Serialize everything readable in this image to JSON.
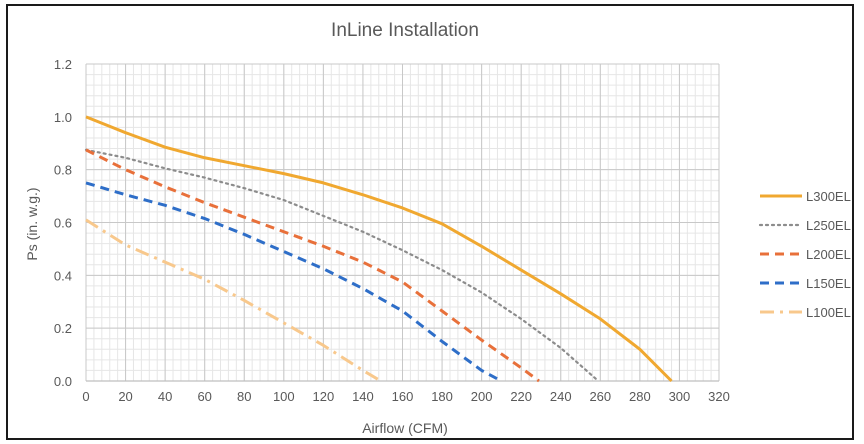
{
  "chart_data": {
    "type": "line",
    "title": "InLine Installation",
    "xlabel": "Airflow (CFM)",
    "ylabel": "Ps (in. w.g.)",
    "xlim": [
      0,
      320
    ],
    "ylim": [
      0,
      1.2
    ],
    "x_ticks": [
      0,
      20,
      40,
      60,
      80,
      100,
      120,
      140,
      160,
      180,
      200,
      220,
      240,
      260,
      280,
      300,
      320
    ],
    "y_ticks": [
      0.0,
      0.2,
      0.4,
      0.6,
      0.8,
      1.0,
      1.2
    ],
    "x_tick_labels": [
      "0",
      "20",
      "40",
      "60",
      "80",
      "100",
      "120",
      "140",
      "160",
      "180",
      "200",
      "220",
      "240",
      "260",
      "280",
      "300",
      "320"
    ],
    "y_tick_labels": [
      "0.0",
      "0.2",
      "0.4",
      "0.6",
      "0.8",
      "1.0",
      "1.2"
    ],
    "grid": true,
    "minor_grid": true,
    "legend_position": "right",
    "series": [
      {
        "name": "L300EL",
        "color": "#f0a830",
        "dash": "solid",
        "points": [
          [
            0,
            1.0
          ],
          [
            20,
            0.94
          ],
          [
            40,
            0.885
          ],
          [
            60,
            0.845
          ],
          [
            80,
            0.815
          ],
          [
            100,
            0.785
          ],
          [
            120,
            0.75
          ],
          [
            140,
            0.705
          ],
          [
            160,
            0.655
          ],
          [
            180,
            0.595
          ],
          [
            200,
            0.51
          ],
          [
            220,
            0.42
          ],
          [
            240,
            0.33
          ],
          [
            260,
            0.235
          ],
          [
            280,
            0.12
          ],
          [
            296,
            0.0
          ]
        ]
      },
      {
        "name": "L250EL",
        "color": "#8c8c8c",
        "dash": "dotted",
        "points": [
          [
            0,
            0.875
          ],
          [
            20,
            0.845
          ],
          [
            40,
            0.805
          ],
          [
            60,
            0.77
          ],
          [
            80,
            0.73
          ],
          [
            100,
            0.685
          ],
          [
            120,
            0.625
          ],
          [
            140,
            0.565
          ],
          [
            160,
            0.495
          ],
          [
            180,
            0.42
          ],
          [
            200,
            0.335
          ],
          [
            220,
            0.235
          ],
          [
            240,
            0.125
          ],
          [
            259,
            0.0
          ]
        ]
      },
      {
        "name": "L200EL",
        "color": "#e8703a",
        "dash": "dashed",
        "points": [
          [
            0,
            0.875
          ],
          [
            20,
            0.8
          ],
          [
            40,
            0.735
          ],
          [
            60,
            0.675
          ],
          [
            80,
            0.62
          ],
          [
            100,
            0.565
          ],
          [
            120,
            0.51
          ],
          [
            140,
            0.45
          ],
          [
            160,
            0.375
          ],
          [
            180,
            0.265
          ],
          [
            200,
            0.155
          ],
          [
            220,
            0.05
          ],
          [
            229,
            0.0
          ]
        ]
      },
      {
        "name": "L150EL",
        "color": "#2e6ec8",
        "dash": "dashed",
        "points": [
          [
            0,
            0.75
          ],
          [
            20,
            0.705
          ],
          [
            40,
            0.665
          ],
          [
            60,
            0.615
          ],
          [
            80,
            0.555
          ],
          [
            100,
            0.49
          ],
          [
            120,
            0.425
          ],
          [
            140,
            0.35
          ],
          [
            160,
            0.265
          ],
          [
            180,
            0.15
          ],
          [
            200,
            0.04
          ],
          [
            210,
            0.0
          ]
        ]
      },
      {
        "name": "L100EL",
        "color": "#f8c88c",
        "dash": "dashdot",
        "points": [
          [
            0,
            0.61
          ],
          [
            20,
            0.515
          ],
          [
            40,
            0.45
          ],
          [
            60,
            0.385
          ],
          [
            80,
            0.305
          ],
          [
            100,
            0.22
          ],
          [
            120,
            0.135
          ],
          [
            140,
            0.04
          ],
          [
            149,
            0.0
          ]
        ]
      }
    ]
  }
}
